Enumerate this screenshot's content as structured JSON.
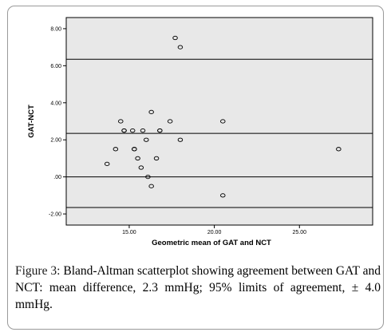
{
  "figure": {
    "label": "Figure 3:",
    "caption": "Bland-Altman scatterplot showing agreement between GAT and NCT: mean difference, 2.3 mmHg; 95% limits of agreement, ± 4.0 mmHg."
  },
  "chart_data": {
    "type": "scatter",
    "title": "",
    "xlabel": "Geometric mean of GAT and NCT",
    "ylabel": "GAT-NCT",
    "xlim": [
      11.3,
      29.3
    ],
    "ylim": [
      -2.6,
      8.6
    ],
    "x_ticks": [
      15,
      20,
      25
    ],
    "x_tick_labels": [
      "15.00",
      "20.00",
      "25.00"
    ],
    "y_ticks": [
      -2,
      0,
      2,
      4,
      6,
      8
    ],
    "y_tick_labels": [
      "-2.00",
      ".00",
      "2.00",
      "4.00",
      "6.00",
      "8.00"
    ],
    "grid": false,
    "background_color": "#e8e8e8",
    "reference_lines": [
      {
        "y": 6.35
      },
      {
        "y": 2.35
      },
      {
        "y": 0.0
      },
      {
        "y": -1.65
      }
    ],
    "series": [
      {
        "marker": "open-circle",
        "x": [
          17.7,
          18.0,
          13.7,
          14.2,
          14.5,
          14.7,
          15.2,
          15.3,
          15.5,
          15.7,
          15.8,
          16.0,
          16.1,
          16.3,
          16.3,
          16.6,
          16.8,
          17.4,
          18.0,
          20.5,
          20.5,
          27.3,
          14.7,
          16.8,
          15.3
        ],
        "y": [
          7.5,
          7.0,
          0.7,
          1.5,
          3.0,
          2.5,
          2.5,
          1.5,
          1.0,
          0.5,
          2.5,
          2.0,
          0.0,
          3.5,
          -0.5,
          1.0,
          2.5,
          3.0,
          2.0,
          3.0,
          -1.0,
          1.5,
          2.5,
          2.5,
          1.5
        ]
      }
    ]
  }
}
